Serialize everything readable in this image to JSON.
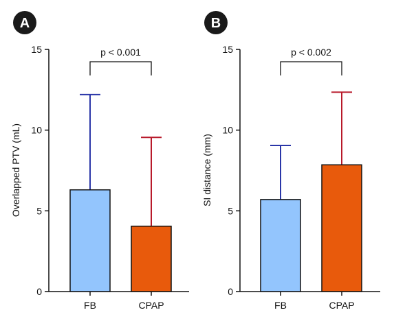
{
  "chart_data": [
    {
      "type": "bar",
      "panel_label": "A",
      "categories": [
        "FB",
        "CPAP"
      ],
      "values": [
        6.3,
        4.05
      ],
      "error_upper": [
        12.2,
        9.55
      ],
      "ylabel": "Overlapped PTV (mL)",
      "ylim": [
        0,
        15
      ],
      "yticks": [
        0,
        5,
        10,
        15
      ],
      "bar_colors": [
        "#93c5fd",
        "#e85a0c"
      ],
      "error_colors": [
        "#2a36a8",
        "#b8192a"
      ],
      "significance": {
        "label": "p < 0.001",
        "between": [
          0,
          1
        ]
      },
      "grid": false
    },
    {
      "type": "bar",
      "panel_label": "B",
      "categories": [
        "FB",
        "CPAP"
      ],
      "values": [
        5.7,
        7.85
      ],
      "error_upper": [
        9.05,
        12.35
      ],
      "ylabel": "SI distance (mm)",
      "ylim": [
        0,
        15
      ],
      "yticks": [
        0,
        5,
        10,
        15
      ],
      "bar_colors": [
        "#93c5fd",
        "#e85a0c"
      ],
      "error_colors": [
        "#2a36a8",
        "#b8192a"
      ],
      "significance": {
        "label": "p < 0.002",
        "between": [
          0,
          1
        ]
      },
      "grid": false
    }
  ]
}
